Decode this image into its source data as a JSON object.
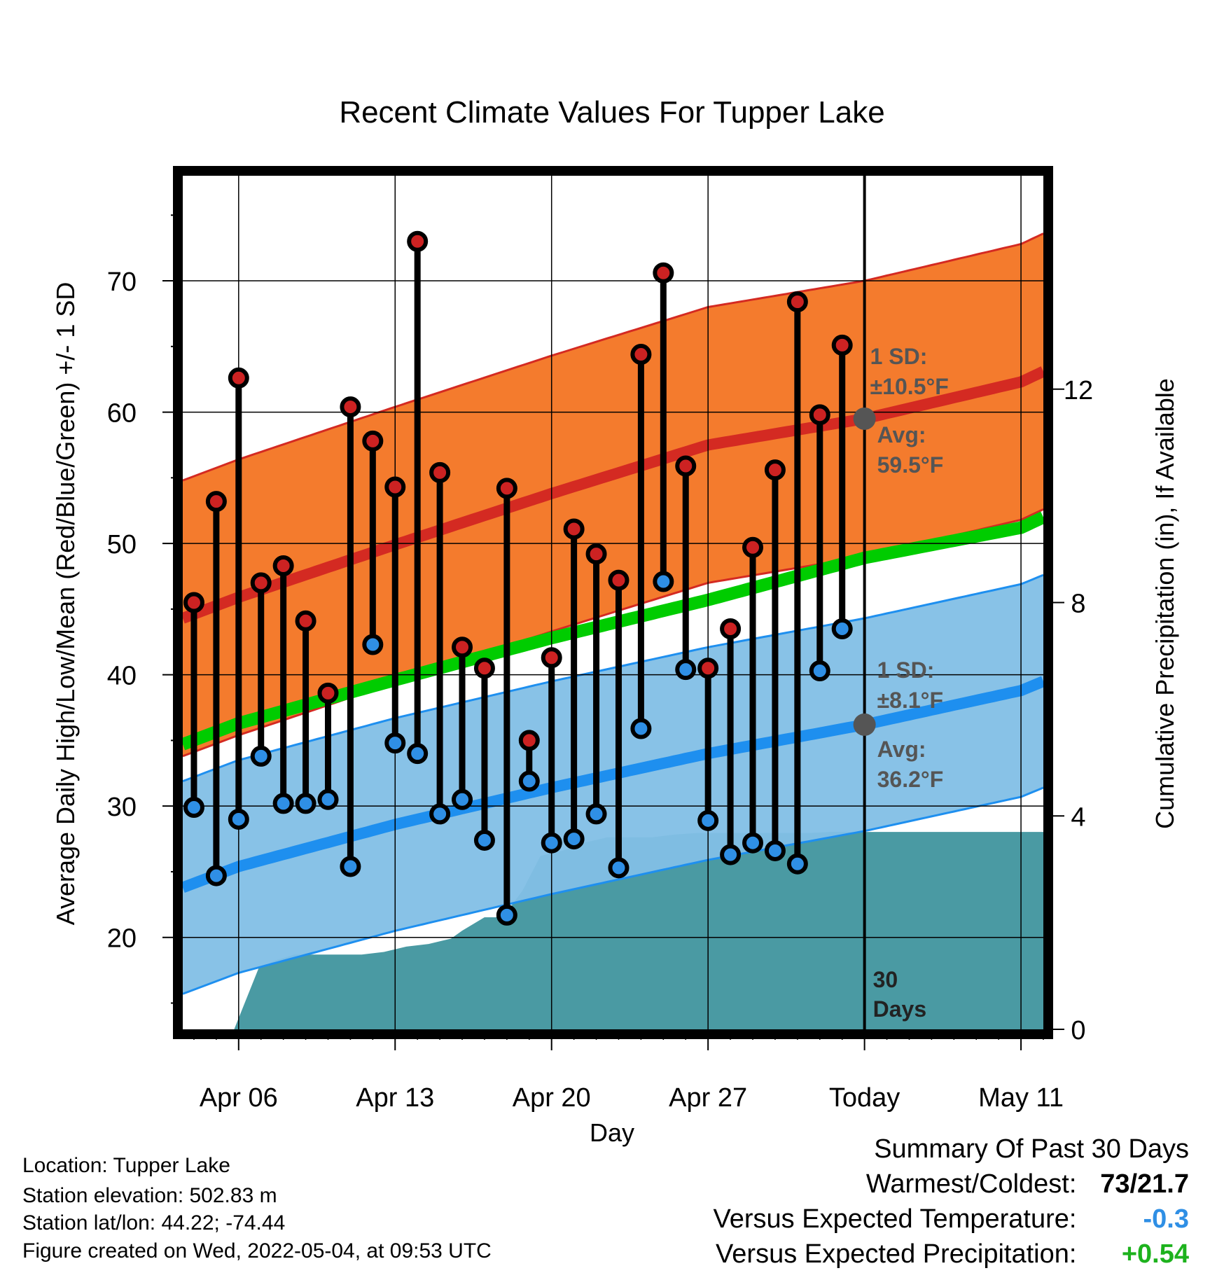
{
  "chart_data": {
    "type": "line",
    "title": "Recent Climate Values For Tupper Lake",
    "xlabel": "Day",
    "ylabel_left": "Average Daily High/Low/Mean (Red/Blue/Green) +/- 1 SD",
    "ylabel_right": "Cumulative Precipitation (in), If Available",
    "xlim": [
      -0.5,
      38
    ],
    "ylim": [
      13,
      78
    ],
    "ylim_right": [
      0,
      16
    ],
    "x_ticks": [
      {
        "x": 2,
        "label": "Apr 06"
      },
      {
        "x": 9,
        "label": "Apr 13"
      },
      {
        "x": 16,
        "label": "Apr 20"
      },
      {
        "x": 23,
        "label": "Apr 27"
      },
      {
        "x": 30,
        "label": "Today"
      },
      {
        "x": 37,
        "label": "May 11"
      }
    ],
    "y_ticks_left": [
      20,
      30,
      40,
      50,
      60,
      70
    ],
    "y_ticks_right": [
      0,
      4,
      8,
      12
    ],
    "today_x": 30,
    "today_label_line1": "30",
    "today_label_line2": "Days",
    "grid": true,
    "colors": {
      "high_band": "#f47b2d",
      "high_mean_line": "#d42a22",
      "low_band": "#82bfe6",
      "low_mean_line": "#1e8fef",
      "mean_line": "#00cc00",
      "precip": "#4a9aa3",
      "high_marker": "#cc2222",
      "low_marker": "#2f8fe5",
      "summary_cold": "#2f8fe5",
      "summary_wet": "#1db21d"
    },
    "normal_high": {
      "x": [
        -0.5,
        2,
        9,
        16,
        23,
        30,
        37,
        38
      ],
      "mean": [
        44.3,
        45.9,
        49.9,
        53.8,
        57.5,
        59.5,
        62.3,
        63.1
      ]
    },
    "normal_high_sd": 10.5,
    "normal_low": {
      "x": [
        -0.5,
        2,
        9,
        16,
        23,
        30,
        37,
        38
      ],
      "mean": [
        23.8,
        25.4,
        28.6,
        31.4,
        34.0,
        36.2,
        38.8,
        39.5
      ]
    },
    "normal_low_sd": 8.1,
    "normal_mean": {
      "x": [
        -0.5,
        2,
        9,
        16,
        23,
        30,
        37,
        38
      ],
      "values": [
        34.7,
        36.3,
        39.6,
        42.8,
        45.7,
        48.9,
        51.2,
        52.0
      ]
    },
    "observed": {
      "x": [
        0,
        1,
        2,
        3,
        4,
        5,
        6,
        7,
        8,
        9,
        10,
        11,
        12,
        13,
        14,
        15,
        16,
        17,
        18,
        19,
        20,
        21,
        22,
        23,
        24,
        25,
        26,
        27,
        28,
        29
      ],
      "high": [
        45.5,
        53.2,
        62.6,
        47.0,
        48.3,
        44.1,
        38.6,
        60.4,
        57.8,
        54.3,
        73.0,
        55.4,
        42.1,
        40.5,
        54.2,
        35.0,
        41.3,
        51.1,
        49.2,
        47.2,
        64.4,
        70.6,
        55.9,
        40.5,
        43.5,
        49.7,
        55.6,
        68.4,
        59.8,
        65.1
      ],
      "low": [
        29.9,
        24.7,
        29.0,
        33.8,
        30.2,
        30.2,
        30.5,
        25.4,
        42.3,
        34.8,
        34.0,
        29.4,
        30.5,
        27.4,
        21.7,
        31.9,
        27.2,
        27.5,
        29.4,
        25.3,
        35.9,
        47.1,
        40.4,
        28.9,
        26.3,
        27.2,
        26.6,
        25.6,
        40.3,
        43.5
      ]
    },
    "precip_cumulative": {
      "x": [
        1.8,
        2.9,
        3.7,
        4.5,
        5.5,
        6.5,
        7.5,
        8.5,
        9.5,
        10.5,
        11.5,
        12,
        13,
        13.5,
        14,
        14.7,
        15.5,
        16.5,
        17.5,
        18.5,
        19.5,
        20.5,
        21.5,
        22.5,
        23.5,
        24.5,
        25.5,
        26.5,
        27.5,
        28.5,
        29.5,
        30,
        38
      ],
      "values": [
        0,
        1.15,
        1.3,
        1.4,
        1.4,
        1.4,
        1.4,
        1.45,
        1.55,
        1.6,
        1.7,
        1.85,
        2.1,
        2.1,
        2.2,
        2.6,
        3.25,
        3.35,
        3.5,
        3.6,
        3.6,
        3.6,
        3.65,
        3.68,
        3.68,
        3.68,
        3.68,
        3.68,
        3.68,
        3.7,
        3.7,
        3.7,
        3.7
      ]
    },
    "annotations": {
      "high_sd_label": "1 SD:",
      "high_sd_value": "±10.5°F",
      "high_avg_label": "Avg:",
      "high_avg_value": "59.5°F",
      "low_sd_label": "1 SD:",
      "low_sd_value": "±8.1°F",
      "low_avg_label": "Avg:",
      "low_avg_value": "36.2°F"
    }
  },
  "footer": {
    "location": "Location: Tupper Lake",
    "elevation": "Station elevation: 502.83 m",
    "latlon": "Station lat/lon: 44.22; -74.44",
    "created": "Figure created on Wed, 2022-05-04, at 09:53 UTC"
  },
  "summary": {
    "title": "Summary Of Past 30 Days",
    "warmest_label": "Warmest/Coldest:",
    "warmest_value": "73/21.7",
    "temp_label": "Versus Expected Temperature:",
    "temp_value": "-0.3",
    "precip_label": "Versus Expected Precipitation:",
    "precip_value": "+0.54"
  }
}
